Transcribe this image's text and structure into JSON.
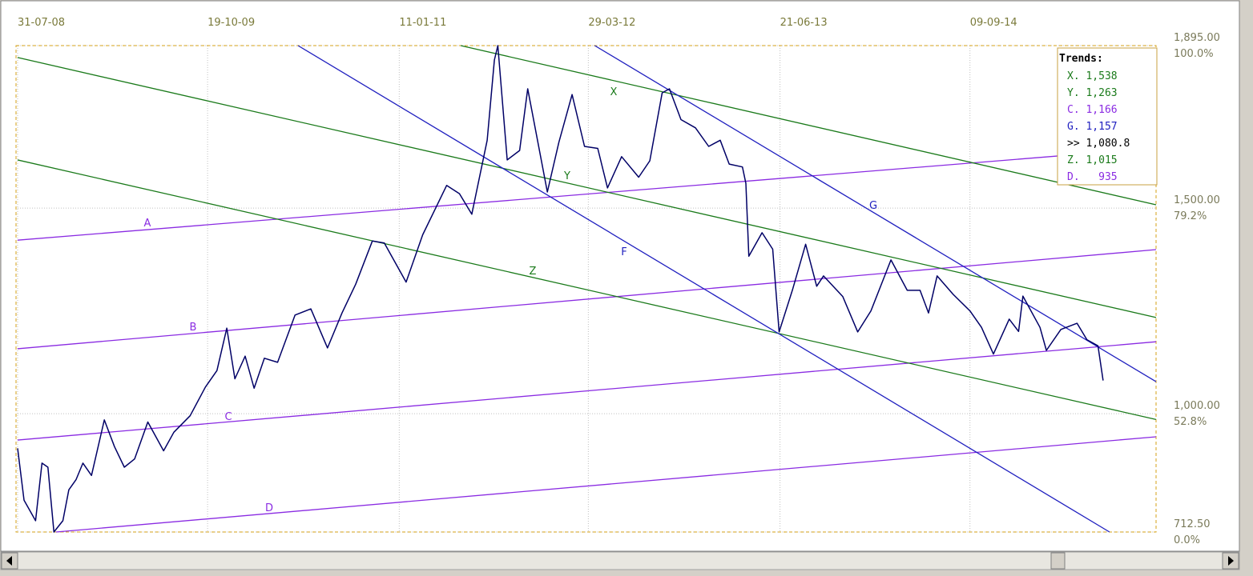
{
  "chart_data": {
    "type": "line",
    "xlim": [
      "2008-07-31",
      "2015-11-19"
    ],
    "xticks": [
      {
        "value": "2008-07-31",
        "label": "31-07-08"
      },
      {
        "value": "2009-10-19",
        "label": "19-10-09"
      },
      {
        "value": "2011-01-11",
        "label": "11-01-11"
      },
      {
        "value": "2012-03-29",
        "label": "29-03-12"
      },
      {
        "value": "2013-06-21",
        "label": "21-06-13"
      },
      {
        "value": "2014-09-09",
        "label": "09-09-14"
      }
    ],
    "ylim": [
      712.5,
      1895
    ],
    "yticks": [
      {
        "value": 1895,
        "label": "1,895.00",
        "sublabel": "100.0%"
      },
      {
        "value": 1500,
        "label": "1,500.00",
        "sublabel": "79.2%"
      },
      {
        "value": 1000,
        "label": "1,000.00",
        "sublabel": "52.8%"
      },
      {
        "value": 712.5,
        "label": "712.50",
        "sublabel": "0.0%"
      }
    ],
    "grid": true,
    "price": {
      "color": "#000066",
      "x": [
        "2008-07-31",
        "2008-08-15",
        "2008-09-11",
        "2008-09-26",
        "2008-10-10",
        "2008-10-24",
        "2008-11-14",
        "2008-11-28",
        "2008-12-15",
        "2008-12-31",
        "2009-01-20",
        "2009-02-19",
        "2009-03-15",
        "2009-04-07",
        "2009-05-01",
        "2009-06-01",
        "2009-07-08",
        "2009-08-01",
        "2009-09-08",
        "2009-10-14",
        "2009-11-10",
        "2009-12-03",
        "2009-12-22",
        "2010-01-15",
        "2010-02-05",
        "2010-03-01",
        "2010-04-01",
        "2010-05-12",
        "2010-06-18",
        "2010-07-27",
        "2010-08-30",
        "2010-10-01",
        "2010-11-09",
        "2010-12-07",
        "2011-01-27",
        "2011-03-07",
        "2011-05-02",
        "2011-06-01",
        "2011-06-30",
        "2011-08-05",
        "2011-08-22",
        "2011-08-30",
        "2011-09-21",
        "2011-10-20",
        "2011-11-08",
        "2011-12-24",
        "2012-01-20",
        "2012-02-20",
        "2012-03-20",
        "2012-04-20",
        "2012-05-13",
        "2012-06-15",
        "2012-07-25",
        "2012-08-20",
        "2012-09-18",
        "2012-10-05",
        "2012-11-01",
        "2012-12-05",
        "2013-01-05",
        "2013-02-01",
        "2013-02-22",
        "2013-03-25",
        "2013-04-02",
        "2013-04-09",
        "2013-05-10",
        "2013-06-04",
        "2013-06-19",
        "2013-07-20",
        "2013-08-20",
        "2013-09-15",
        "2013-10-01",
        "2013-11-15",
        "2013-12-20",
        "2014-01-20",
        "2014-03-08",
        "2014-04-15",
        "2014-05-15",
        "2014-06-04",
        "2014-06-24",
        "2014-08-01",
        "2014-09-09",
        "2014-10-06",
        "2014-11-03",
        "2014-12-10",
        "2015-01-01",
        "2015-01-11",
        "2015-02-20",
        "2015-03-07",
        "2015-04-10",
        "2015-05-18",
        "2015-06-10",
        "2015-07-06",
        "2015-07-18"
      ],
      "values": [
        916,
        790,
        740,
        880,
        870,
        712.5,
        740,
        815,
        840,
        880,
        850,
        985,
        920,
        870,
        890,
        980,
        910,
        955,
        995,
        1065,
        1105,
        1208,
        1085,
        1140,
        1062,
        1135,
        1125,
        1240,
        1255,
        1160,
        1245,
        1315,
        1420,
        1415,
        1320,
        1435,
        1555,
        1535,
        1485,
        1665,
        1860,
        1895,
        1617,
        1640,
        1790,
        1539,
        1660,
        1776,
        1650,
        1645,
        1549,
        1625,
        1575,
        1615,
        1780,
        1790,
        1715,
        1695,
        1650,
        1665,
        1607,
        1600,
        1560,
        1383,
        1440,
        1400,
        1199,
        1300,
        1412,
        1310,
        1335,
        1285,
        1199,
        1250,
        1374,
        1300,
        1300,
        1245,
        1335,
        1290,
        1250,
        1210,
        1145,
        1230,
        1200,
        1286,
        1210,
        1154,
        1205,
        1220,
        1180,
        1165,
        1080.8
      ]
    },
    "trend_lines": [
      {
        "name": "A",
        "color": "#8a2be2",
        "x": [
          "2008-07-31",
          "2015-11-19"
        ],
        "values": [
          1422,
          1646
        ]
      },
      {
        "name": "B",
        "color": "#8a2be2",
        "x": [
          "2008-07-31",
          "2015-11-19"
        ],
        "values": [
          1158,
          1399
        ]
      },
      {
        "name": "C",
        "color": "#8a2be2",
        "x": [
          "2008-07-31",
          "2015-11-19"
        ],
        "values": [
          936,
          1175
        ]
      },
      {
        "name": "D",
        "color": "#8a2be2",
        "x": [
          "2008-10-29",
          "2015-11-19"
        ],
        "values": [
          712.5,
          944
        ]
      },
      {
        "name": "X",
        "color": "#1a7a1a",
        "x": [
          "2011-06-04",
          "2015-11-19"
        ],
        "values": [
          1895,
          1508
        ]
      },
      {
        "name": "Y",
        "color": "#1a7a1a",
        "x": [
          "2008-07-31",
          "2015-11-19"
        ],
        "values": [
          1866,
          1234
        ]
      },
      {
        "name": "Z",
        "color": "#1a7a1a",
        "x": [
          "2008-07-31",
          "2015-11-19"
        ],
        "values": [
          1617,
          986
        ]
      },
      {
        "name": "F",
        "color": "#1f1fbf",
        "x": [
          "2010-05-19",
          "2015-08-02"
        ],
        "values": [
          1895,
          712.5
        ]
      },
      {
        "name": "G",
        "color": "#1f1fbf",
        "x": [
          "2012-04-13",
          "2015-11-19"
        ],
        "values": [
          1895,
          1078
        ]
      }
    ],
    "trends_box": {
      "title": "Trends:",
      "rows": [
        {
          "text": "X. 1,538",
          "color": "#1a7a1a"
        },
        {
          "text": "Y. 1,263",
          "color": "#1a7a1a"
        },
        {
          "text": "C. 1,166",
          "color": "#8a2be2"
        },
        {
          "text": "G. 1,157",
          "color": "#1f1fbf"
        },
        {
          "text": ">> 1,080.8",
          "color": "#000000"
        },
        {
          "text": "Z. 1,015",
          "color": "#1a7a1a"
        },
        {
          "text": "D.   935",
          "color": "#8a2be2"
        }
      ]
    }
  }
}
